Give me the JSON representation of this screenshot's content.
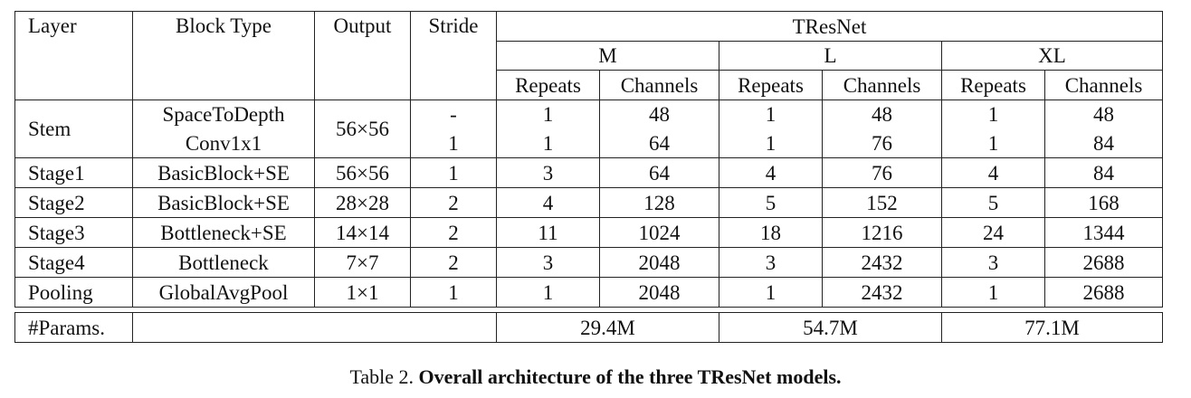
{
  "headers": {
    "layer": "Layer",
    "block_type": "Block Type",
    "output": "Output",
    "stride": "Stride",
    "group": "TResNet",
    "models": [
      "M",
      "L",
      "XL"
    ],
    "repeats": "Repeats",
    "channels": "Channels"
  },
  "rows": [
    {
      "layer": "Stem",
      "block": "SpaceToDepth",
      "output": "56×56",
      "stride": "-",
      "m_rep": "1",
      "m_ch": "48",
      "l_rep": "1",
      "l_ch": "48",
      "xl_rep": "1",
      "xl_ch": "48"
    },
    {
      "layer": "",
      "block": "Conv1x1",
      "output": "",
      "stride": "1",
      "m_rep": "1",
      "m_ch": "64",
      "l_rep": "1",
      "l_ch": "76",
      "xl_rep": "1",
      "xl_ch": "84"
    },
    {
      "layer": "Stage1",
      "block": "BasicBlock+SE",
      "output": "56×56",
      "stride": "1",
      "m_rep": "3",
      "m_ch": "64",
      "l_rep": "4",
      "l_ch": "76",
      "xl_rep": "4",
      "xl_ch": "84"
    },
    {
      "layer": "Stage2",
      "block": "BasicBlock+SE",
      "output": "28×28",
      "stride": "2",
      "m_rep": "4",
      "m_ch": "128",
      "l_rep": "5",
      "l_ch": "152",
      "xl_rep": "5",
      "xl_ch": "168"
    },
    {
      "layer": "Stage3",
      "block": "Bottleneck+SE",
      "output": "14×14",
      "stride": "2",
      "m_rep": "11",
      "m_ch": "1024",
      "l_rep": "18",
      "l_ch": "1216",
      "xl_rep": "24",
      "xl_ch": "1344"
    },
    {
      "layer": "Stage4",
      "block": "Bottleneck",
      "output": "7×7",
      "stride": "2",
      "m_rep": "3",
      "m_ch": "2048",
      "l_rep": "3",
      "l_ch": "2432",
      "xl_rep": "3",
      "xl_ch": "2688"
    },
    {
      "layer": "Pooling",
      "block": "GlobalAvgPool",
      "output": "1×1",
      "stride": "1",
      "m_rep": "1",
      "m_ch": "2048",
      "l_rep": "1",
      "l_ch": "2432",
      "xl_rep": "1",
      "xl_ch": "2688"
    }
  ],
  "params": {
    "label": "#Params.",
    "m": "29.4M",
    "l": "54.7M",
    "xl": "77.1M"
  },
  "caption": {
    "prefix": "Table 2.",
    "text": "Overall architecture of the three TResNet models."
  }
}
